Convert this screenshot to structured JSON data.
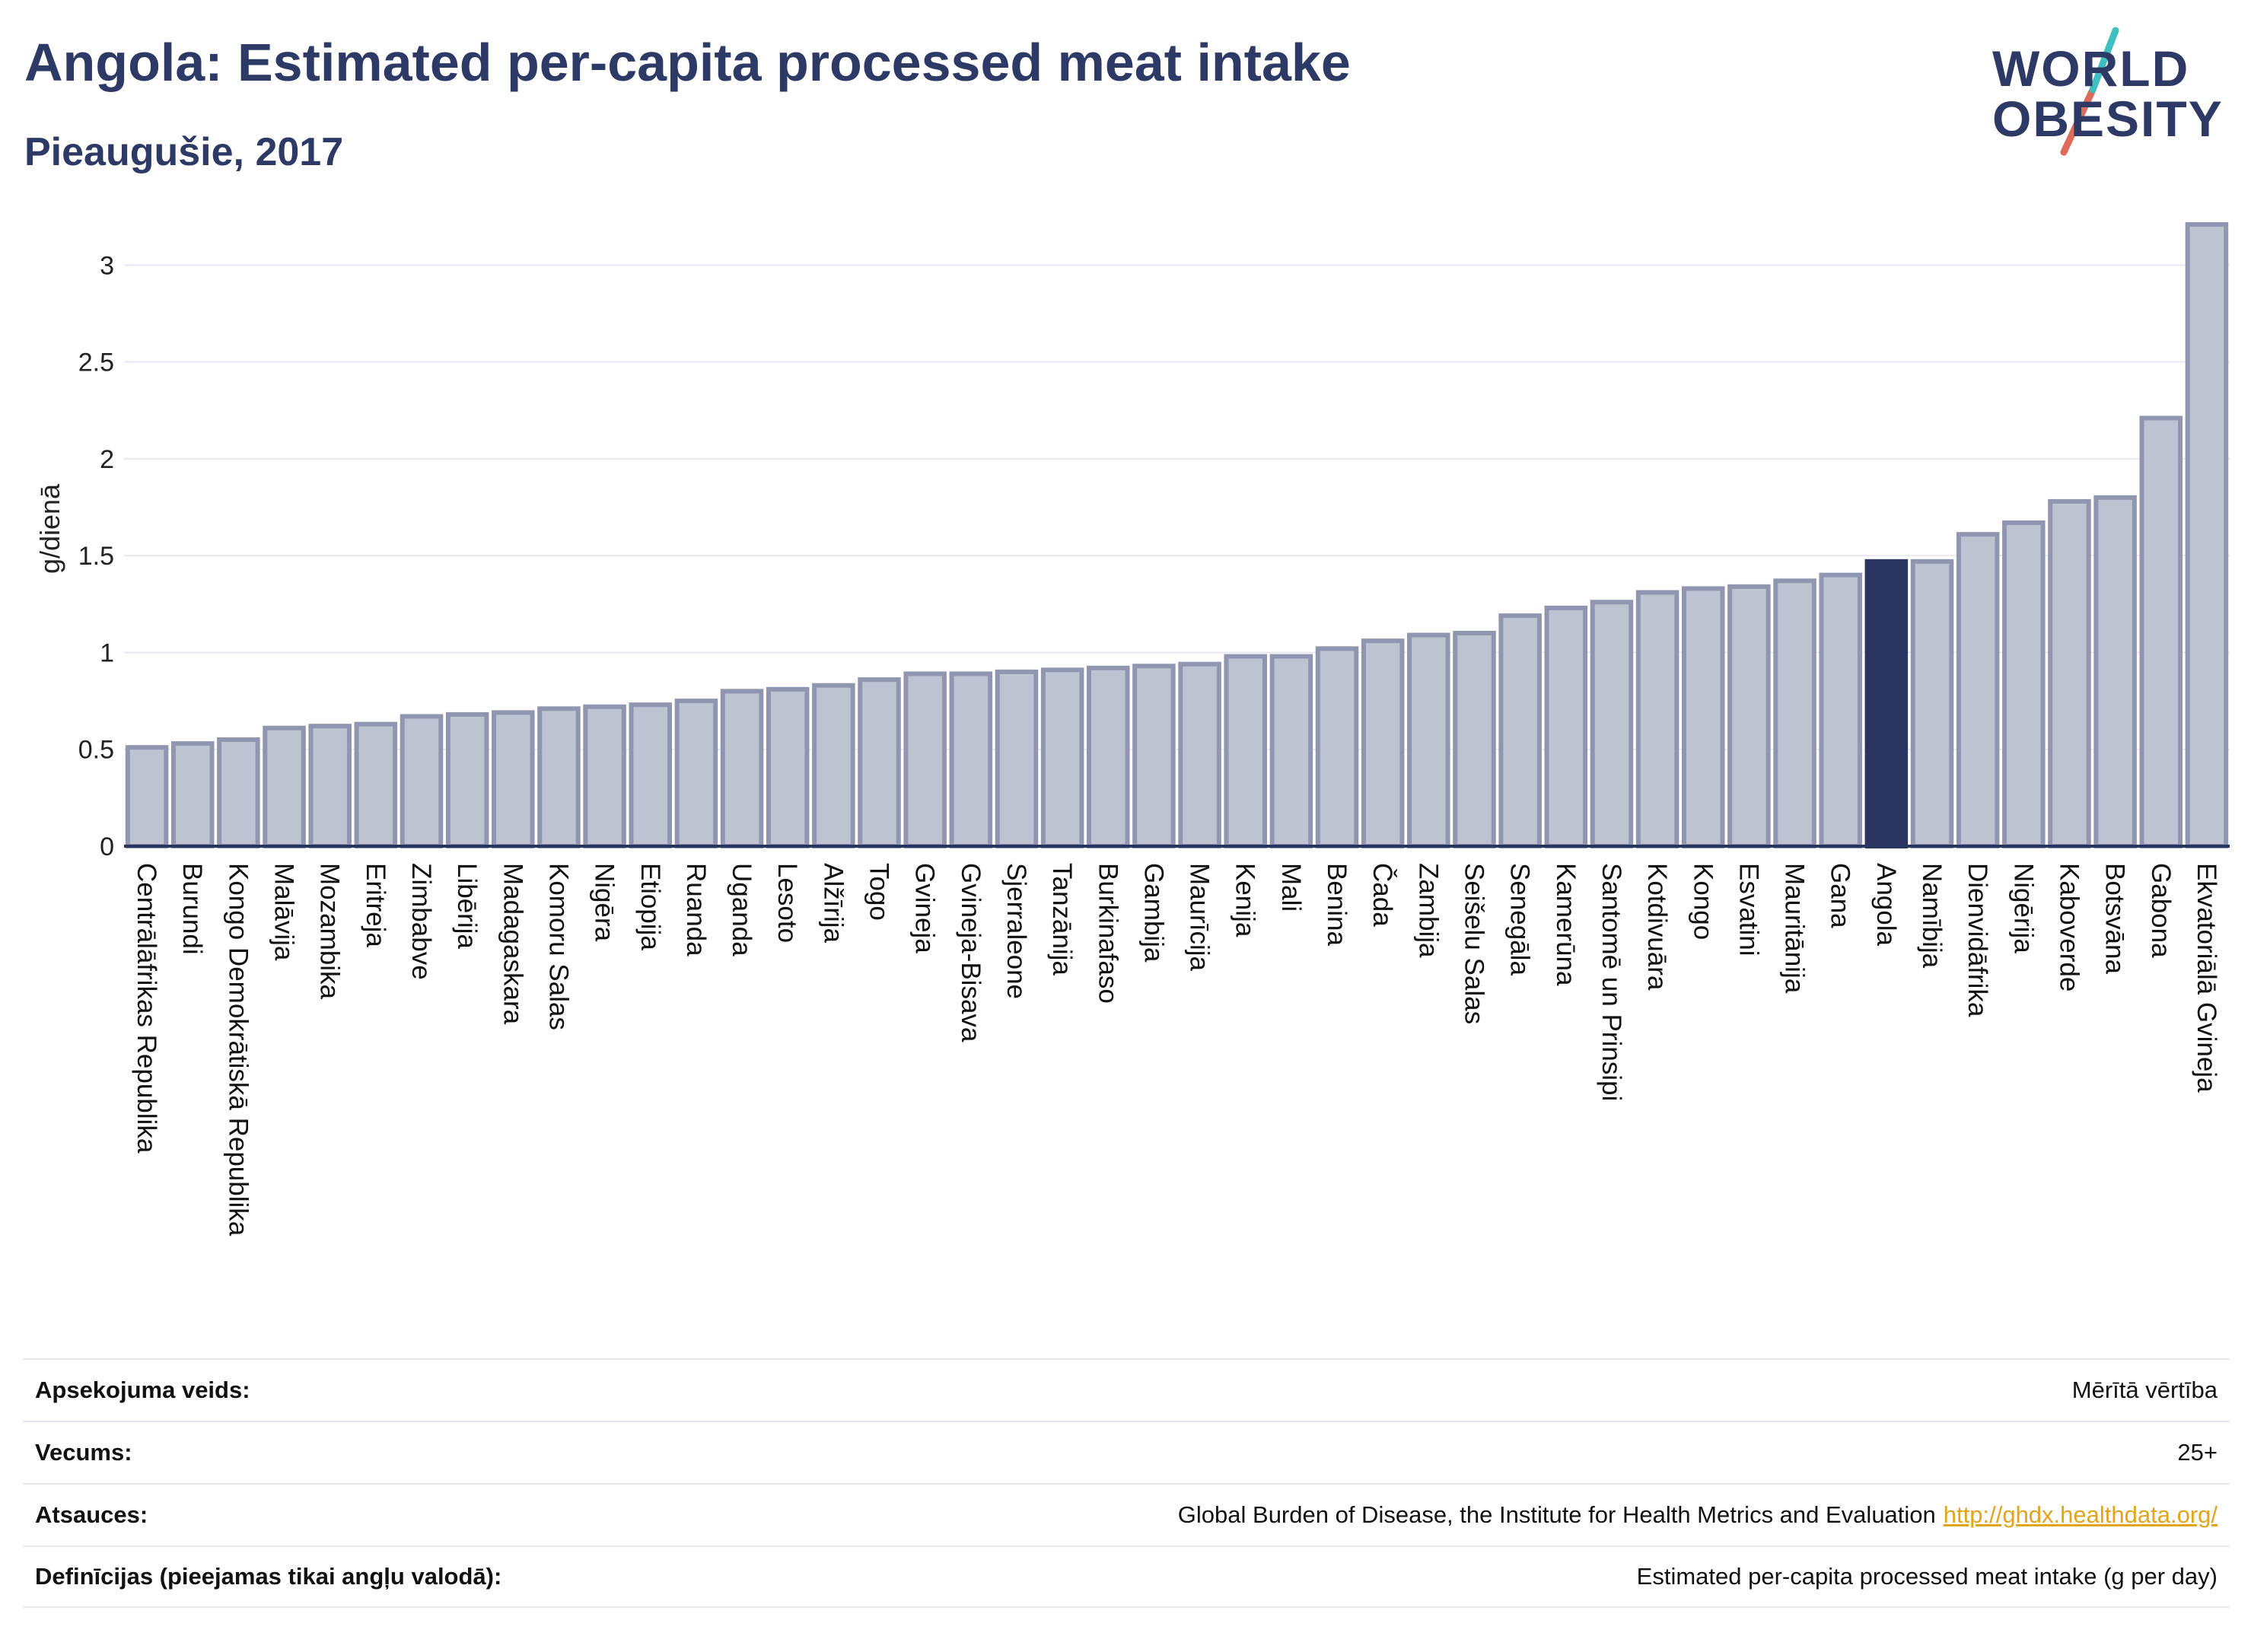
{
  "header": {
    "title": "Angola: Estimated per-capita processed meat intake",
    "subtitle": "Pieaugušie, 2017"
  },
  "logo": {
    "line1": "WORLD",
    "line2": "OBESITY",
    "accent_colors": [
      "#3fbfbf",
      "#e06a5a"
    ]
  },
  "colors": {
    "bar": "#bec3d2",
    "bar_border": "#9096b0",
    "highlight": "#2a3460",
    "grid": "#e8eaf0",
    "axis": "#2a3460"
  },
  "chart_data": {
    "type": "bar",
    "ylabel": "g/dienā",
    "ylim": [
      0,
      3.3
    ],
    "yticks": [
      0,
      0.5,
      1,
      1.5,
      2,
      2.5,
      3
    ],
    "ytick_labels": [
      "0",
      "0.5",
      "1",
      "1.5",
      "2",
      "2.5",
      "3"
    ],
    "grid": true,
    "highlight": "Angola",
    "categories": [
      "Centrālāfrikas Republika",
      "Burundi",
      "Kongo Demokrātiskā Republika",
      "Malāvija",
      "Mozambika",
      "Eritreja",
      "Zimbabve",
      "Libērija",
      "Madagaskara",
      "Komoru Salas",
      "Nigēra",
      "Etiopija",
      "Ruanda",
      "Uganda",
      "Lesoto",
      "Alžīrija",
      "Togo",
      "Gvineja",
      "Gvineja-Bisava",
      "Sjerraleone",
      "Tanzānija",
      "Burkinafaso",
      "Gambija",
      "Maurīcija",
      "Kenija",
      "Mali",
      "Benina",
      "Čada",
      "Zambija",
      "Seišelu Salas",
      "Senegāla",
      "Kamerūna",
      "Santomē un Prinsipi",
      "Kotdivuāra",
      "Kongo",
      "Esvatini",
      "Mauritānija",
      "Gana",
      "Angola",
      "Namībija",
      "Dienvidāfrika",
      "Nigērija",
      "Kaboverde",
      "Botsvāna",
      "Gabona",
      "Ekvatoriālā Gvineja"
    ],
    "values": [
      0.51,
      0.53,
      0.55,
      0.61,
      0.62,
      0.63,
      0.67,
      0.68,
      0.69,
      0.71,
      0.72,
      0.73,
      0.75,
      0.8,
      0.81,
      0.83,
      0.86,
      0.89,
      0.89,
      0.9,
      0.91,
      0.92,
      0.93,
      0.94,
      0.98,
      0.98,
      1.02,
      1.06,
      1.09,
      1.1,
      1.19,
      1.23,
      1.26,
      1.31,
      1.33,
      1.34,
      1.37,
      1.4,
      1.47,
      1.47,
      1.61,
      1.67,
      1.78,
      1.8,
      2.21,
      3.21
    ]
  },
  "info": [
    {
      "key": "Apsekojuma veids:",
      "value": "Mērītā vērtība"
    },
    {
      "key": "Vecums:",
      "value": "25+"
    },
    {
      "key": "Atsauces:",
      "value": "Global Burden of Disease, the Institute for Health Metrics and Evaluation",
      "link": "http://ghdx.healthdata.org/"
    },
    {
      "key": "Definīcijas (pieejamas tikai angļu valodā):",
      "value": "Estimated per-capita processed meat intake (g per day)"
    }
  ]
}
